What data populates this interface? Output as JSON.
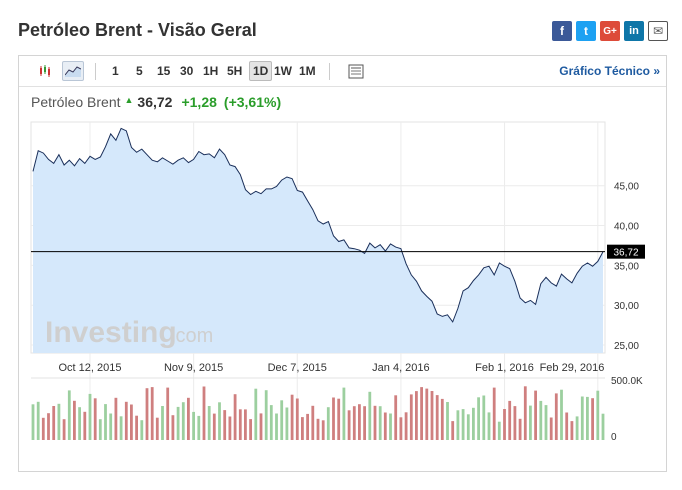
{
  "page": {
    "title": "Petróleo Brent - Visão Geral"
  },
  "share": [
    {
      "name": "facebook-share-icon",
      "glyph": "f"
    },
    {
      "name": "twitter-share-icon",
      "glyph": "t"
    },
    {
      "name": "googleplus-share-icon",
      "glyph": "G+"
    },
    {
      "name": "linkedin-share-icon",
      "glyph": "in"
    },
    {
      "name": "email-share-icon",
      "glyph": "✉"
    }
  ],
  "toolbar": {
    "timeframes": [
      "1",
      "5",
      "15",
      "30",
      "1H",
      "5H",
      "1D",
      "1W",
      "1M"
    ],
    "active_timeframe": "1D",
    "tech_link": "Gráfico Técnico »"
  },
  "quote": {
    "name": "Petróleo Brent",
    "price": "36,72",
    "change": "+1,28",
    "change_pct": "(+3,61%)",
    "up_color": "#2a9d2a"
  },
  "watermark": {
    "brand": "Investing",
    "suffix": ".com"
  },
  "chart_data": {
    "type": "area",
    "x_tick_labels": [
      "Oct 12, 2015",
      "Nov 9, 2015",
      "Dec 7, 2015",
      "Jan 4, 2016",
      "Feb 1, 2016",
      "Feb 29, 2016"
    ],
    "y_tick_labels": [
      "45,00",
      "40,00",
      "35,00",
      "30,00",
      "25,00"
    ],
    "y_ticks": [
      45,
      40,
      35,
      30,
      25
    ],
    "ylim": [
      24,
      53
    ],
    "current_price": 36.72,
    "current_label": "36,72",
    "fill_color": "#d5e8fb",
    "line_color": "#1a2f5a",
    "series_close": [
      46.8,
      49.4,
      49.1,
      48.3,
      47.8,
      48.9,
      47.6,
      48.2,
      47.5,
      48.4,
      47.8,
      48.7,
      48.3,
      48.6,
      49.9,
      51.5,
      50.7,
      52.2,
      51.9,
      49.8,
      49.2,
      49.6,
      48.9,
      48.2,
      48.0,
      48.5,
      48.1,
      47.7,
      48.2,
      48.5,
      47.9,
      48.3,
      49.3,
      48.9,
      49.0,
      48.5,
      49.6,
      48.9,
      47.6,
      47.4,
      46.4,
      44.5,
      43.9,
      44.3,
      44.0,
      44.6,
      44.6,
      44.9,
      45.7,
      46.1,
      45.9,
      44.4,
      44.2,
      43.1,
      42.0,
      40.6,
      40.2,
      40.5,
      38.7,
      38.0,
      38.2,
      37.2,
      37.1,
      36.9,
      36.5,
      37.8,
      37.2,
      37.6,
      36.8,
      37.7,
      37.3,
      37.1,
      35.2,
      33.8,
      33.0,
      31.8,
      31.1,
      30.5,
      28.9,
      28.6,
      28.8,
      27.9,
      29.6,
      31.8,
      32.2,
      33.1,
      33.8,
      34.7,
      34.9,
      33.8,
      35.3,
      34.9,
      34.6,
      33.0,
      30.9,
      30.3,
      30.6,
      30.1,
      32.7,
      33.5,
      32.8,
      32.4,
      33.9,
      33.3,
      32.8,
      34.0,
      34.9,
      35.3,
      34.9,
      35.5,
      36.7
    ],
    "volume_ylim": [
      0,
      500000
    ],
    "volume_tick_labels": [
      "500.0K",
      "0"
    ],
    "volume_up_color": "#9ccf9f",
    "volume_down_color": "#cf7f7f",
    "volume_seed": 7
  }
}
